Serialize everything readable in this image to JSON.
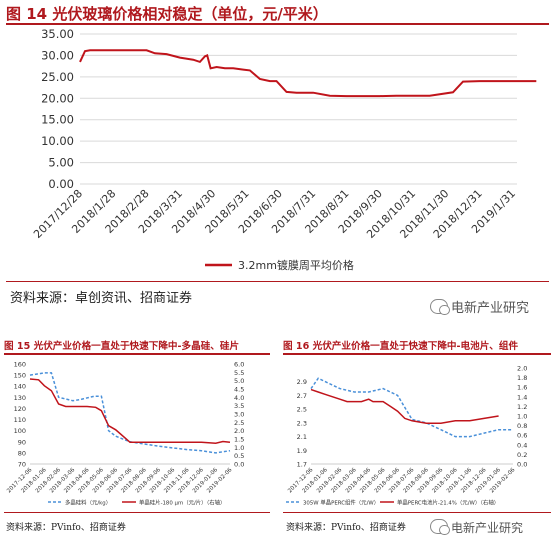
{
  "main": {
    "title": "图 14 光伏玻璃价格相对稳定（单位，元/平米）",
    "source": "资料来源：卓创资讯、招商证券",
    "watermark": "电新产业研究"
  },
  "left": {
    "title": "图 15 光伏产业价格一直处于快速下降中-多晶硅、硅片",
    "source": "资料来源：PVinfo、招商证券"
  },
  "right": {
    "title": "图 16 光伏产业价格一直处于快速下降中-电池片、组件",
    "source": "资料来源：PVinfo、招商证券",
    "watermark": "电新产业研究"
  },
  "colors": {
    "accent": "#b0191e",
    "line_red": "#c0141b",
    "line_blue": "#4a90d9"
  },
  "chart_data": [
    {
      "id": "fig14",
      "type": "line",
      "title": "图 14 光伏玻璃价格相对稳定（单位，元/平米）",
      "ylim": [
        0,
        35
      ],
      "yticks": [
        "0.00",
        "5.00",
        "10.00",
        "15.00",
        "20.00",
        "25.00",
        "30.00",
        "35.00"
      ],
      "x_tick_labels": [
        "2017/12/28",
        "2018/1/28",
        "2018/2/28",
        "2018/3/31",
        "2018/4/30",
        "2018/5/31",
        "2018/6/30",
        "2018/7/31",
        "2018/8/31",
        "2018/9/30",
        "2018/10/31",
        "2018/11/30",
        "2018/12/31",
        "2019/1/31"
      ],
      "grid": true,
      "legend": "bottom",
      "series": [
        {
          "name": "3.2mm镀膜周平均价格",
          "color": "#c0141b",
          "points": [
            [
              0,
              28.5
            ],
            [
              0.15,
              31
            ],
            [
              0.3,
              31.2
            ],
            [
              1,
              31.2
            ],
            [
              2,
              31.2
            ],
            [
              2.25,
              30.5
            ],
            [
              2.6,
              30.3
            ],
            [
              3,
              29.5
            ],
            [
              3.4,
              29
            ],
            [
              3.6,
              28.5
            ],
            [
              3.75,
              29.8
            ],
            [
              3.82,
              30
            ],
            [
              3.92,
              27
            ],
            [
              4.1,
              27.3
            ],
            [
              4.35,
              27
            ],
            [
              4.6,
              27
            ],
            [
              4.9,
              26.7
            ],
            [
              5.1,
              26.5
            ],
            [
              5.4,
              24.5
            ],
            [
              5.7,
              24
            ],
            [
              5.9,
              24
            ],
            [
              6.2,
              21.5
            ],
            [
              6.5,
              21.3
            ],
            [
              7,
              21.3
            ],
            [
              7.5,
              20.6
            ],
            [
              8,
              20.5
            ],
            [
              9,
              20.5
            ],
            [
              9.5,
              20.6
            ],
            [
              10.5,
              20.6
            ],
            [
              11.2,
              21.4
            ],
            [
              11.5,
              23.9
            ],
            [
              12,
              24
            ],
            [
              13,
              24
            ],
            [
              13.7,
              24
            ]
          ]
        }
      ]
    },
    {
      "id": "fig15",
      "type": "line",
      "title": "图 15 光伏产业价格一直处于快速下降中-多晶硅、硅片",
      "ylim": [
        70,
        160
      ],
      "yticks": [
        "70",
        "80",
        "90",
        "100",
        "110",
        "120",
        "130",
        "140",
        "150",
        "160"
      ],
      "y2lim": [
        0.0,
        6.0
      ],
      "y2ticks": [
        "0.0",
        "0.5",
        "1.0",
        "1.5",
        "2.0",
        "2.5",
        "3.0",
        "3.5",
        "4.0",
        "4.5",
        "5.0",
        "5.5",
        "6.0"
      ],
      "x_tick_labels": [
        "2017-12-06",
        "2018-01-06",
        "2018-02-06",
        "2018-03-06",
        "2018-04-06",
        "2018-05-06",
        "2018-06-06",
        "2018-07-06",
        "2018-08-06",
        "2018-09-06",
        "2018-10-06",
        "2018-11-06",
        "2018-12-06",
        "2019-01-06",
        "2019-02-06"
      ],
      "grid": false,
      "legend": "bottom",
      "series": [
        {
          "name": "多晶硅料（元/kg）",
          "axis": "left",
          "style": "dashed",
          "color": "#4a90d9",
          "points": [
            [
              0,
              150
            ],
            [
              1,
              152
            ],
            [
              1.5,
              152
            ],
            [
              2,
              130
            ],
            [
              3,
              127
            ],
            [
              3.5,
              128
            ],
            [
              4.5,
              131
            ],
            [
              5,
              131
            ],
            [
              5.5,
              100
            ],
            [
              6,
              95
            ],
            [
              7,
              90
            ],
            [
              9,
              86
            ],
            [
              11,
              83
            ],
            [
              12,
              82
            ],
            [
              13,
              80
            ],
            [
              14,
              82
            ]
          ]
        },
        {
          "name": "单晶硅片-180 μm（元/片）（右轴）",
          "axis": "right",
          "style": "solid",
          "color": "#c0141b",
          "points": [
            [
              0,
              5.1
            ],
            [
              0.6,
              5.05
            ],
            [
              1,
              4.7
            ],
            [
              1.5,
              4.4
            ],
            [
              2,
              3.6
            ],
            [
              2.5,
              3.45
            ],
            [
              4,
              3.45
            ],
            [
              4.6,
              3.4
            ],
            [
              5,
              3.2
            ],
            [
              5.5,
              2.3
            ],
            [
              6,
              2.05
            ],
            [
              7,
              1.3
            ],
            [
              8,
              1.3
            ],
            [
              12,
              1.3
            ],
            [
              13,
              1.25
            ],
            [
              13.5,
              1.35
            ],
            [
              14,
              1.3
            ]
          ]
        }
      ]
    },
    {
      "id": "fig16",
      "type": "line",
      "title": "图 16 光伏产业价格一直处于快速下降中-电池片、组件",
      "ylim": [
        1.7,
        3.1
      ],
      "yticks": [
        "1.7",
        "1.9",
        "2.1",
        "2.3",
        "2.5",
        "2.7",
        "2.9"
      ],
      "y2lim": [
        0.0,
        2.0
      ],
      "y2ticks": [
        "0.0",
        "0.2",
        "0.4",
        "0.6",
        "0.8",
        "1.0",
        "1.2",
        "1.4",
        "1.6",
        "1.8",
        "2.0"
      ],
      "x_tick_labels": [
        "2017-12-06",
        "2018-01-06",
        "2018-02-06",
        "2018-03-06",
        "2018-04-06",
        "2018-05-06",
        "2018-06-06",
        "2018-07-06",
        "2018-08-06",
        "2018-09-06",
        "2018-10-06",
        "2018-11-06",
        "2018-12-06",
        "2019-01-06",
        "2019-02-06"
      ],
      "grid": false,
      "legend": "bottom",
      "series": [
        {
          "name": "305W 单晶PERC组件（元/W）",
          "axis": "left",
          "style": "dashed",
          "color": "#4a90d9",
          "points": [
            [
              0,
              2.8
            ],
            [
              0.5,
              2.95
            ],
            [
              1,
              2.9
            ],
            [
              2,
              2.8
            ],
            [
              3,
              2.75
            ],
            [
              4,
              2.75
            ],
            [
              5,
              2.8
            ],
            [
              6,
              2.7
            ],
            [
              7,
              2.35
            ],
            [
              8,
              2.3
            ],
            [
              9,
              2.2
            ],
            [
              10,
              2.1
            ],
            [
              11,
              2.1
            ],
            [
              12,
              2.15
            ],
            [
              13,
              2.2
            ],
            [
              14,
              2.2
            ]
          ]
        },
        {
          "name": "单晶PERC电池片-21.4%（元/W）（右轴）",
          "axis": "right",
          "style": "solid",
          "color": "#c0141b",
          "points": [
            [
              0,
              1.55
            ],
            [
              0.5,
              1.5
            ],
            [
              1,
              1.45
            ],
            [
              2,
              1.35
            ],
            [
              2.5,
              1.3
            ],
            [
              3,
              1.3
            ],
            [
              3.5,
              1.3
            ],
            [
              4,
              1.35
            ],
            [
              4.3,
              1.3
            ],
            [
              5,
              1.3
            ],
            [
              5.5,
              1.2
            ],
            [
              6,
              1.1
            ],
            [
              6.5,
              0.95
            ],
            [
              7,
              0.9
            ],
            [
              8,
              0.85
            ],
            [
              9,
              0.85
            ],
            [
              10,
              0.9
            ],
            [
              11,
              0.9
            ],
            [
              12,
              0.95
            ],
            [
              13,
              1.0
            ]
          ]
        }
      ]
    }
  ]
}
